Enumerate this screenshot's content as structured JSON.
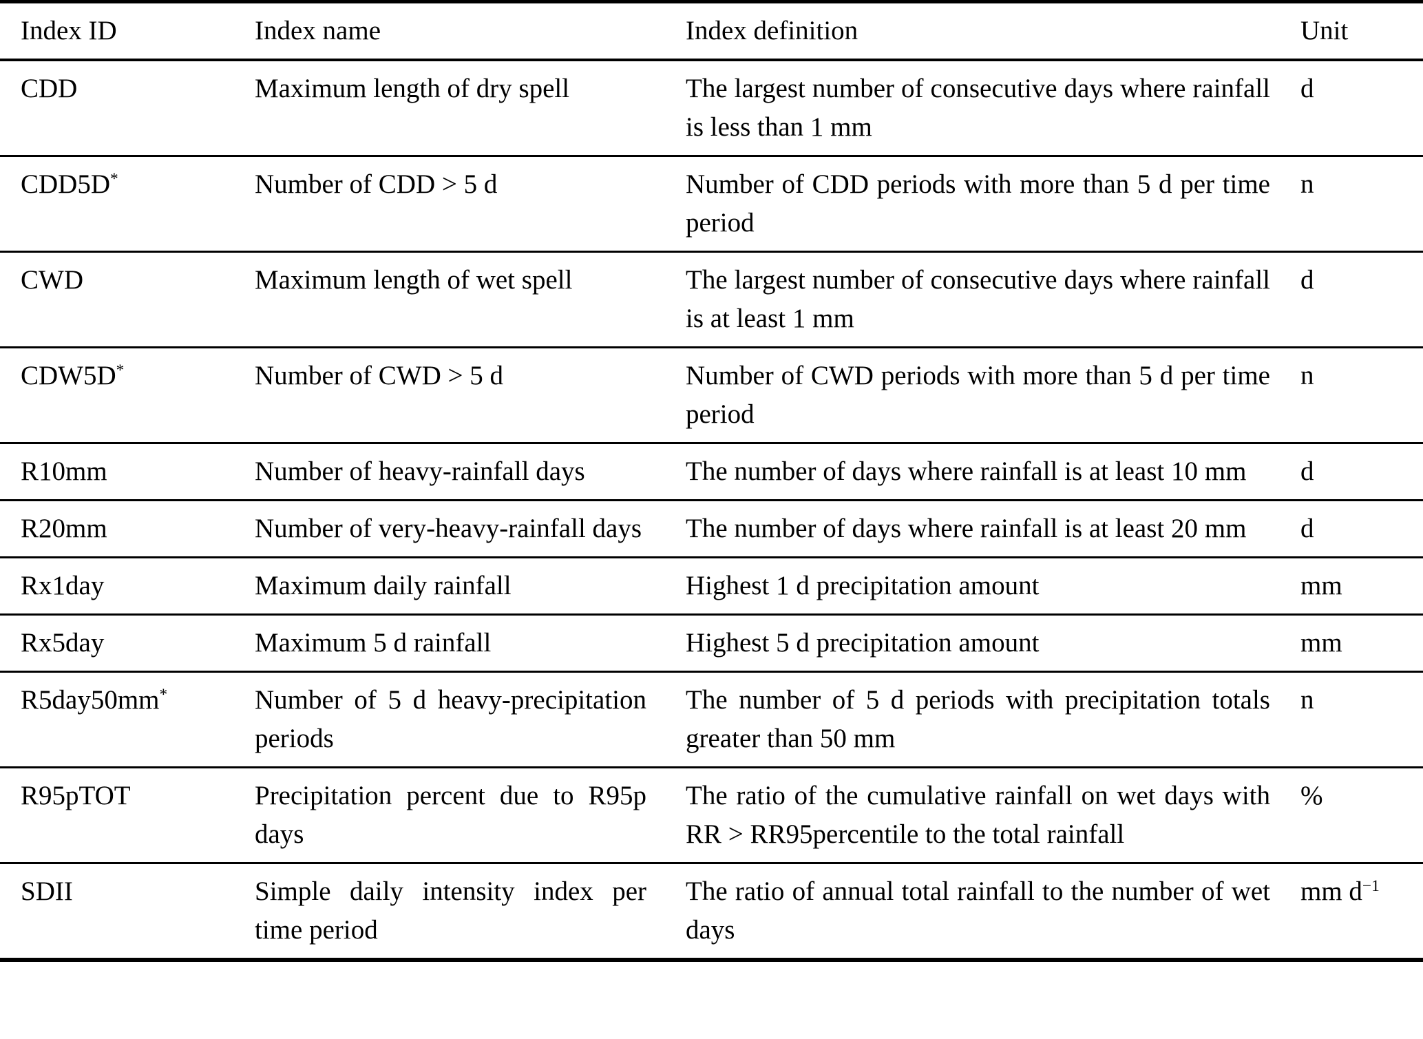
{
  "colors": {
    "text": "#000000",
    "background": "#ffffff",
    "rule": "#000000"
  },
  "table": {
    "columns": [
      "Index ID",
      "Index name",
      "Index definition",
      "Unit"
    ],
    "rows": [
      {
        "id": "CDD",
        "id_sup": "",
        "name": "Maximum length of dry spell",
        "definition": "The largest number of consecutive days where rainfall is less than 1 mm",
        "unit": "d",
        "unit_sup": ""
      },
      {
        "id": "CDD5D",
        "id_sup": "*",
        "name": "Number of CDD > 5 d",
        "definition": "Number of CDD periods with more than 5 d per time period",
        "unit": "n",
        "unit_sup": ""
      },
      {
        "id": "CWD",
        "id_sup": "",
        "name": "Maximum length of wet spell",
        "definition": "The largest number of consecutive days where rainfall is at least 1 mm",
        "unit": "d",
        "unit_sup": ""
      },
      {
        "id": "CDW5D",
        "id_sup": "*",
        "name": "Number of CWD > 5 d",
        "definition": "Number of CWD periods with more than 5 d per time period",
        "unit": "n",
        "unit_sup": ""
      },
      {
        "id": "R10mm",
        "id_sup": "",
        "name": "Number of heavy-rainfall days",
        "definition": "The number of days where rainfall is at least 10 mm",
        "unit": "d",
        "unit_sup": ""
      },
      {
        "id": "R20mm",
        "id_sup": "",
        "name": "Number of very-heavy-rainfall days",
        "definition": "The number of days where rainfall is at least 20 mm",
        "unit": "d",
        "unit_sup": ""
      },
      {
        "id": "Rx1day",
        "id_sup": "",
        "name": "Maximum daily rainfall",
        "definition": "Highest 1 d precipitation amount",
        "unit": "mm",
        "unit_sup": ""
      },
      {
        "id": "Rx5day",
        "id_sup": "",
        "name": "Maximum 5 d rainfall",
        "definition": "Highest 5 d precipitation amount",
        "unit": "mm",
        "unit_sup": ""
      },
      {
        "id": "R5day50mm",
        "id_sup": "*",
        "name": "Number of 5 d heavy-precipitation periods",
        "definition": "The number of 5 d periods with precipitation totals greater than 50 mm",
        "unit": "n",
        "unit_sup": ""
      },
      {
        "id": "R95pTOT",
        "id_sup": "",
        "name": "Precipitation percent due to R95p days",
        "definition": "The ratio of the cumulative rainfall on wet days with RR > RR95percentile to the total rainfall",
        "unit": "%",
        "unit_sup": ""
      },
      {
        "id": "SDII",
        "id_sup": "",
        "name": "Simple daily intensity index per time period",
        "definition": "The ratio of annual total rainfall to the number of wet days",
        "unit": "mm d",
        "unit_sup": "−1"
      }
    ]
  }
}
